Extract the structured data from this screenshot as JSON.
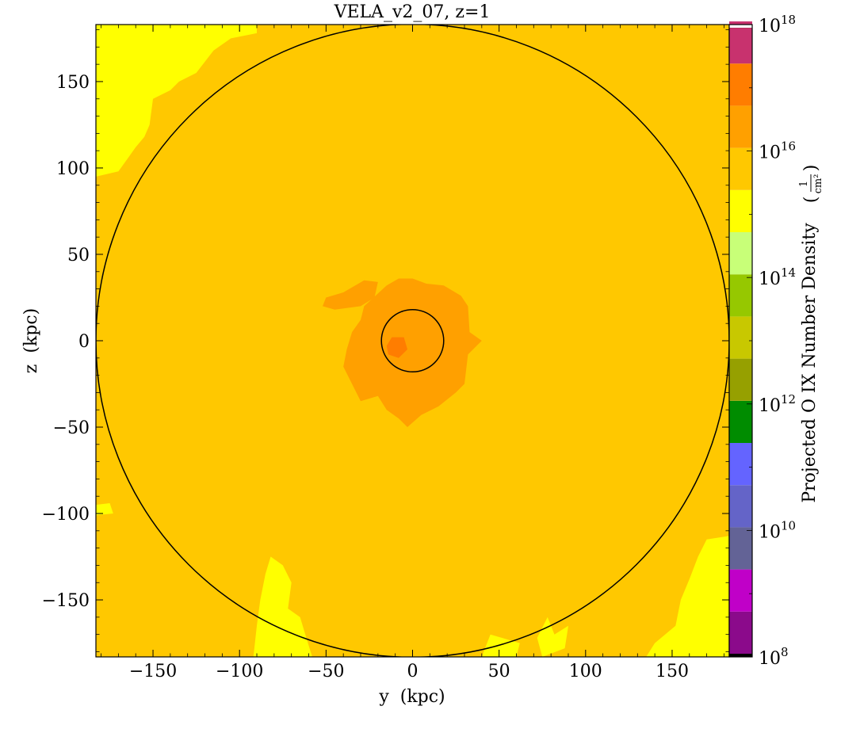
{
  "chart_data": {
    "type": "heatmap",
    "title": "VELA_v2_07, z=1",
    "xlabel": "y  (kpc)",
    "ylabel": "z  (kpc)",
    "xlim": [
      -183,
      183
    ],
    "ylim": [
      -183,
      183
    ],
    "x_ticks": [
      -150,
      -100,
      -50,
      0,
      50,
      100,
      150
    ],
    "y_ticks": [
      -150,
      -100,
      -50,
      0,
      50,
      100,
      150
    ],
    "x_tick_labels": [
      "−150",
      "−100",
      "−50",
      "0",
      "50",
      "100",
      "150"
    ],
    "y_tick_labels": [
      "−150",
      "−100",
      "−50",
      "0",
      "50",
      "100",
      "150"
    ],
    "circles": [
      {
        "cx": 0,
        "cy": 0,
        "r": 183,
        "stroke": "#000000"
      },
      {
        "cx": 0,
        "cy": 0,
        "r": 18,
        "stroke": "#000000"
      }
    ],
    "colorbar": {
      "label": "Projected O IX Number Density",
      "unit_numerator": "1",
      "unit_denominator": "cm²",
      "scale": "log",
      "range_exp": [
        8,
        18
      ],
      "tick_exps": [
        8,
        10,
        12,
        14,
        16,
        18
      ],
      "colors": [
        "#000000",
        "#8b0a8b",
        "#c000c8",
        "#636396",
        "#6464c8",
        "#6464ff",
        "#008c00",
        "#96a000",
        "#c8c800",
        "#96c800",
        "#c8ff78",
        "#ffff00",
        "#ffc800",
        "#ffa000",
        "#ff7d00",
        "#c8326e",
        "#aa2d4b",
        "#ffffff"
      ]
    },
    "background_level": "#ffc800",
    "regions": [
      {
        "level": "#ffff00",
        "polygon": [
          [
            -183,
            183
          ],
          [
            -90,
            183
          ],
          [
            -90,
            178
          ],
          [
            -105,
            175
          ],
          [
            -115,
            168
          ],
          [
            -125,
            155
          ],
          [
            -135,
            150
          ],
          [
            -140,
            145
          ],
          [
            -150,
            140
          ],
          [
            -152,
            125
          ],
          [
            -155,
            118
          ],
          [
            -160,
            112
          ],
          [
            -165,
            105
          ],
          [
            -170,
            98
          ],
          [
            -183,
            95
          ]
        ]
      },
      {
        "level": "#ffff00",
        "polygon": [
          [
            -82,
            -125
          ],
          [
            -75,
            -130
          ],
          [
            -70,
            -140
          ],
          [
            -72,
            -155
          ],
          [
            -65,
            -160
          ],
          [
            -62,
            -170
          ],
          [
            -58,
            -183
          ],
          [
            -92,
            -183
          ],
          [
            -90,
            -165
          ],
          [
            -88,
            -150
          ],
          [
            -85,
            -135
          ]
        ]
      },
      {
        "level": "#ffff00",
        "polygon": [
          [
            183,
            -113
          ],
          [
            170,
            -115
          ],
          [
            165,
            -125
          ],
          [
            160,
            -138
          ],
          [
            155,
            -150
          ],
          [
            152,
            -165
          ],
          [
            140,
            -175
          ],
          [
            135,
            -183
          ],
          [
            183,
            -183
          ]
        ]
      },
      {
        "level": "#ffff00",
        "polygon": [
          [
            45,
            -170
          ],
          [
            40,
            -183
          ],
          [
            60,
            -183
          ],
          [
            62,
            -175
          ]
        ]
      },
      {
        "level": "#ffff00",
        "polygon": [
          [
            78,
            -160
          ],
          [
            82,
            -170
          ],
          [
            90,
            -165
          ],
          [
            88,
            -178
          ],
          [
            75,
            -183
          ],
          [
            72,
            -172
          ]
        ]
      },
      {
        "level": "#ffff00",
        "polygon": [
          [
            -183,
            -95
          ],
          [
            -175,
            -94
          ],
          [
            -173,
            -100
          ],
          [
            -183,
            -101
          ]
        ]
      },
      {
        "level": "#ffa000",
        "polygon": [
          [
            -28,
            20
          ],
          [
            -15,
            32
          ],
          [
            -8,
            36
          ],
          [
            0,
            36
          ],
          [
            8,
            33
          ],
          [
            18,
            32
          ],
          [
            28,
            26
          ],
          [
            32,
            20
          ],
          [
            33,
            5
          ],
          [
            40,
            0
          ],
          [
            32,
            -8
          ],
          [
            30,
            -25
          ],
          [
            25,
            -30
          ],
          [
            15,
            -38
          ],
          [
            5,
            -43
          ],
          [
            -3,
            -50
          ],
          [
            -8,
            -45
          ],
          [
            -15,
            -40
          ],
          [
            -20,
            -32
          ],
          [
            -30,
            -35
          ],
          [
            -35,
            -25
          ],
          [
            -40,
            -15
          ],
          [
            -38,
            -5
          ],
          [
            -35,
            5
          ],
          [
            -30,
            12
          ]
        ]
      },
      {
        "level": "#ffa000",
        "polygon": [
          [
            -50,
            25
          ],
          [
            -40,
            28
          ],
          [
            -28,
            35
          ],
          [
            -20,
            34
          ],
          [
            -22,
            25
          ],
          [
            -30,
            20
          ],
          [
            -45,
            18
          ],
          [
            -52,
            20
          ]
        ]
      },
      {
        "level": "#ff7d00",
        "polygon": [
          [
            -12,
            2
          ],
          [
            -5,
            2
          ],
          [
            -3,
            -5
          ],
          [
            -8,
            -10
          ],
          [
            -14,
            -8
          ],
          [
            -15,
            -3
          ]
        ]
      }
    ]
  }
}
